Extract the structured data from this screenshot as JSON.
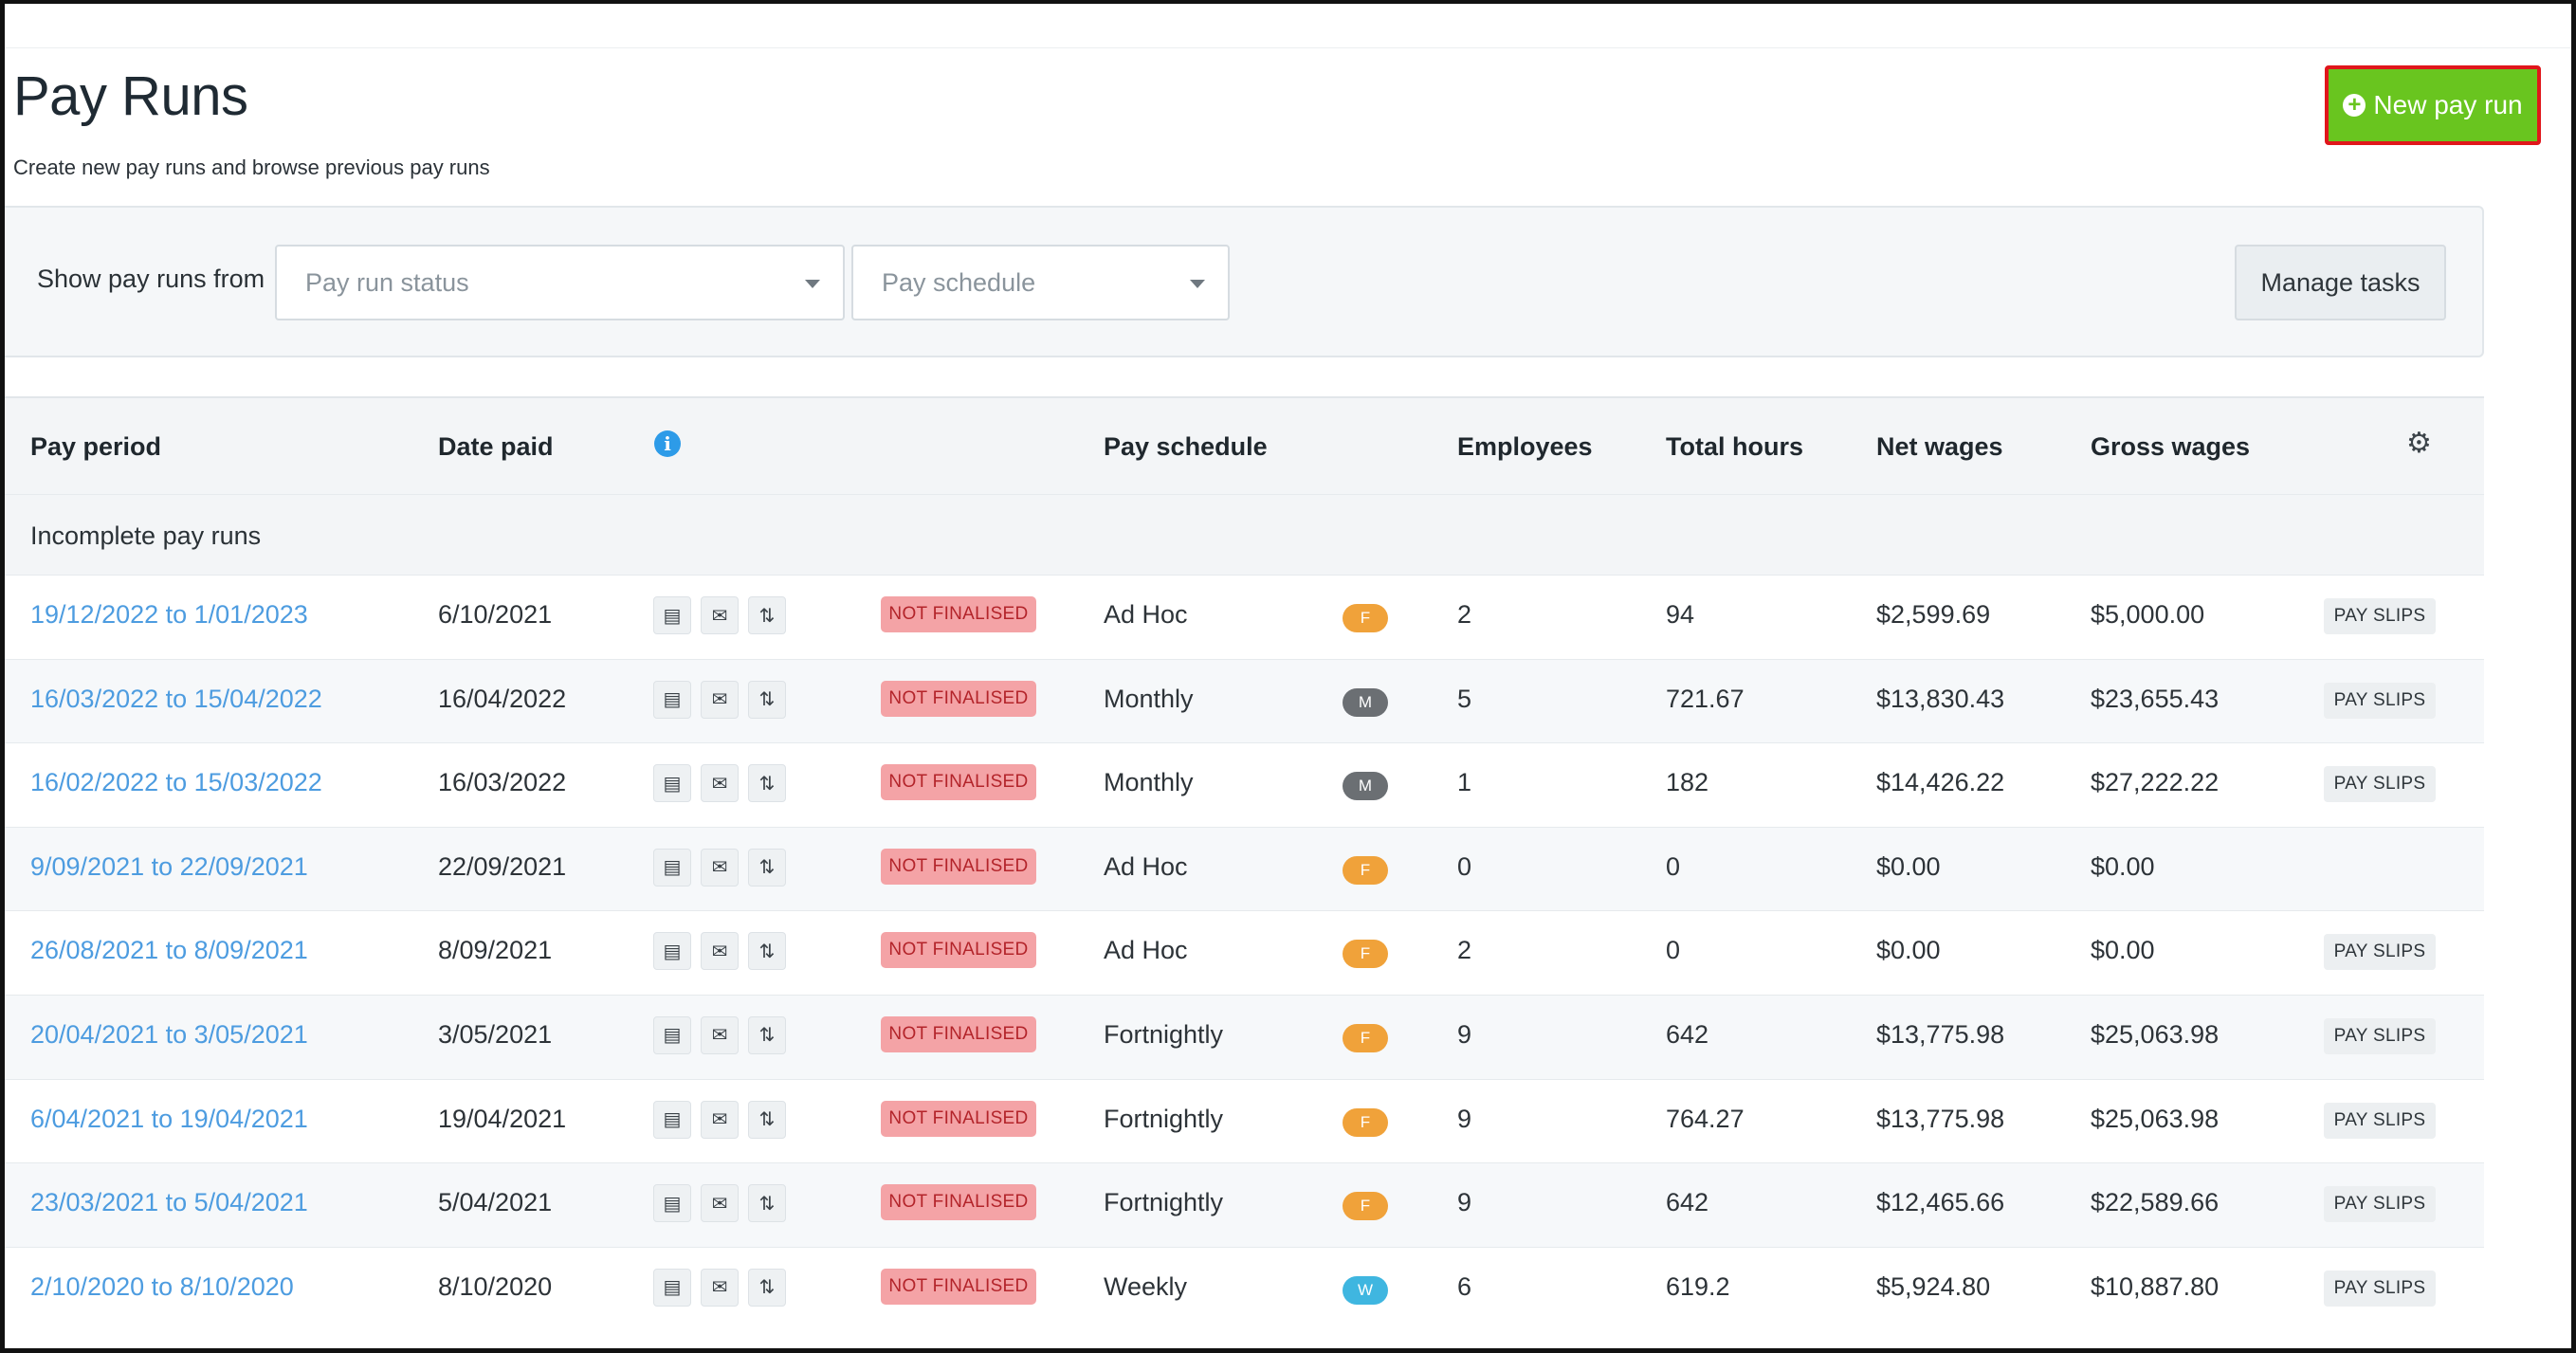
{
  "header": {
    "title": "Pay Runs",
    "subtitle": "Create new pay runs and browse previous pay runs",
    "new_button_label": "New pay run",
    "new_button_icon": "plus-circle-icon"
  },
  "filters": {
    "label": "Show pay runs from",
    "status_placeholder": "Pay run status",
    "schedule_placeholder": "Pay schedule",
    "manage_label": "Manage tasks"
  },
  "table": {
    "columns": {
      "pay_period": "Pay period",
      "date_paid": "Date paid",
      "pay_schedule": "Pay schedule",
      "employees": "Employees",
      "total_hours": "Total hours",
      "net_wages": "Net wages",
      "gross_wages": "Gross wages"
    },
    "section_label": "Incomplete pay runs",
    "status_label": "NOT FINALISED",
    "payslips_label": "PAY SLIPS",
    "rows": [
      {
        "period": "19/12/2022 to 1/01/2023",
        "date_paid": "6/10/2021",
        "schedule": "Ad Hoc",
        "freq": "F",
        "employees": "2",
        "hours": "94",
        "net": "$2,599.69",
        "gross": "$5,000.00",
        "payslips": true
      },
      {
        "period": "16/03/2022 to 15/04/2022",
        "date_paid": "16/04/2022",
        "schedule": "Monthly",
        "freq": "M",
        "employees": "5",
        "hours": "721.67",
        "net": "$13,830.43",
        "gross": "$23,655.43",
        "payslips": true
      },
      {
        "period": "16/02/2022 to 15/03/2022",
        "date_paid": "16/03/2022",
        "schedule": "Monthly",
        "freq": "M",
        "employees": "1",
        "hours": "182",
        "net": "$14,426.22",
        "gross": "$27,222.22",
        "payslips": true
      },
      {
        "period": "9/09/2021 to 22/09/2021",
        "date_paid": "22/09/2021",
        "schedule": "Ad Hoc",
        "freq": "F",
        "employees": "0",
        "hours": "0",
        "net": "$0.00",
        "gross": "$0.00",
        "payslips": false
      },
      {
        "period": "26/08/2021 to 8/09/2021",
        "date_paid": "8/09/2021",
        "schedule": "Ad Hoc",
        "freq": "F",
        "employees": "2",
        "hours": "0",
        "net": "$0.00",
        "gross": "$0.00",
        "payslips": true
      },
      {
        "period": "20/04/2021 to 3/05/2021",
        "date_paid": "3/05/2021",
        "schedule": "Fortnightly",
        "freq": "F",
        "employees": "9",
        "hours": "642",
        "net": "$13,775.98",
        "gross": "$25,063.98",
        "payslips": true
      },
      {
        "period": "6/04/2021 to 19/04/2021",
        "date_paid": "19/04/2021",
        "schedule": "Fortnightly",
        "freq": "F",
        "employees": "9",
        "hours": "764.27",
        "net": "$13,775.98",
        "gross": "$25,063.98",
        "payslips": true
      },
      {
        "period": "23/03/2021 to 5/04/2021",
        "date_paid": "5/04/2021",
        "schedule": "Fortnightly",
        "freq": "F",
        "employees": "9",
        "hours": "642",
        "net": "$12,465.66",
        "gross": "$22,589.66",
        "payslips": true
      },
      {
        "period": "2/10/2020 to 8/10/2020",
        "date_paid": "8/10/2020",
        "schedule": "Weekly",
        "freq": "W",
        "employees": "6",
        "hours": "619.2",
        "net": "$5,924.80",
        "gross": "$10,887.80",
        "payslips": true
      }
    ]
  },
  "colors": {
    "accent_green": "#69c51f",
    "highlight_red": "#e0161b",
    "link_blue": "#4d9ce0",
    "freq_F": "#f0a23a",
    "freq_M": "#6b6f73",
    "freq_W": "#3fb6e0",
    "status_bg": "#f4a3a6",
    "status_text": "#b3242a"
  }
}
